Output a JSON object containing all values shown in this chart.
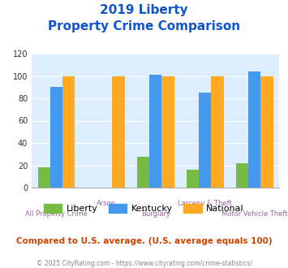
{
  "title_line1": "2019 Liberty",
  "title_line2": "Property Crime Comparison",
  "categories": [
    "All Property Crime",
    "Arson",
    "Burglary",
    "Larceny & Theft",
    "Motor Vehicle Theft"
  ],
  "liberty": [
    18,
    0,
    28,
    16,
    22
  ],
  "kentucky": [
    90,
    0,
    101,
    85,
    104
  ],
  "national": [
    100,
    100,
    100,
    100,
    100
  ],
  "bar_color_liberty": "#77bb44",
  "bar_color_kentucky": "#4499ee",
  "bar_color_national": "#ffaa22",
  "ylim": [
    0,
    120
  ],
  "yticks": [
    0,
    20,
    40,
    60,
    80,
    100,
    120
  ],
  "background_color": "#ddeeff",
  "note": "Compared to U.S. average. (U.S. average equals 100)",
  "footer": "© 2025 CityRating.com - https://www.cityrating.com/crime-statistics/",
  "title_color": "#1155cc",
  "xlabel_color": "#996699",
  "note_color": "#cc4400",
  "footer_color": "#888888"
}
